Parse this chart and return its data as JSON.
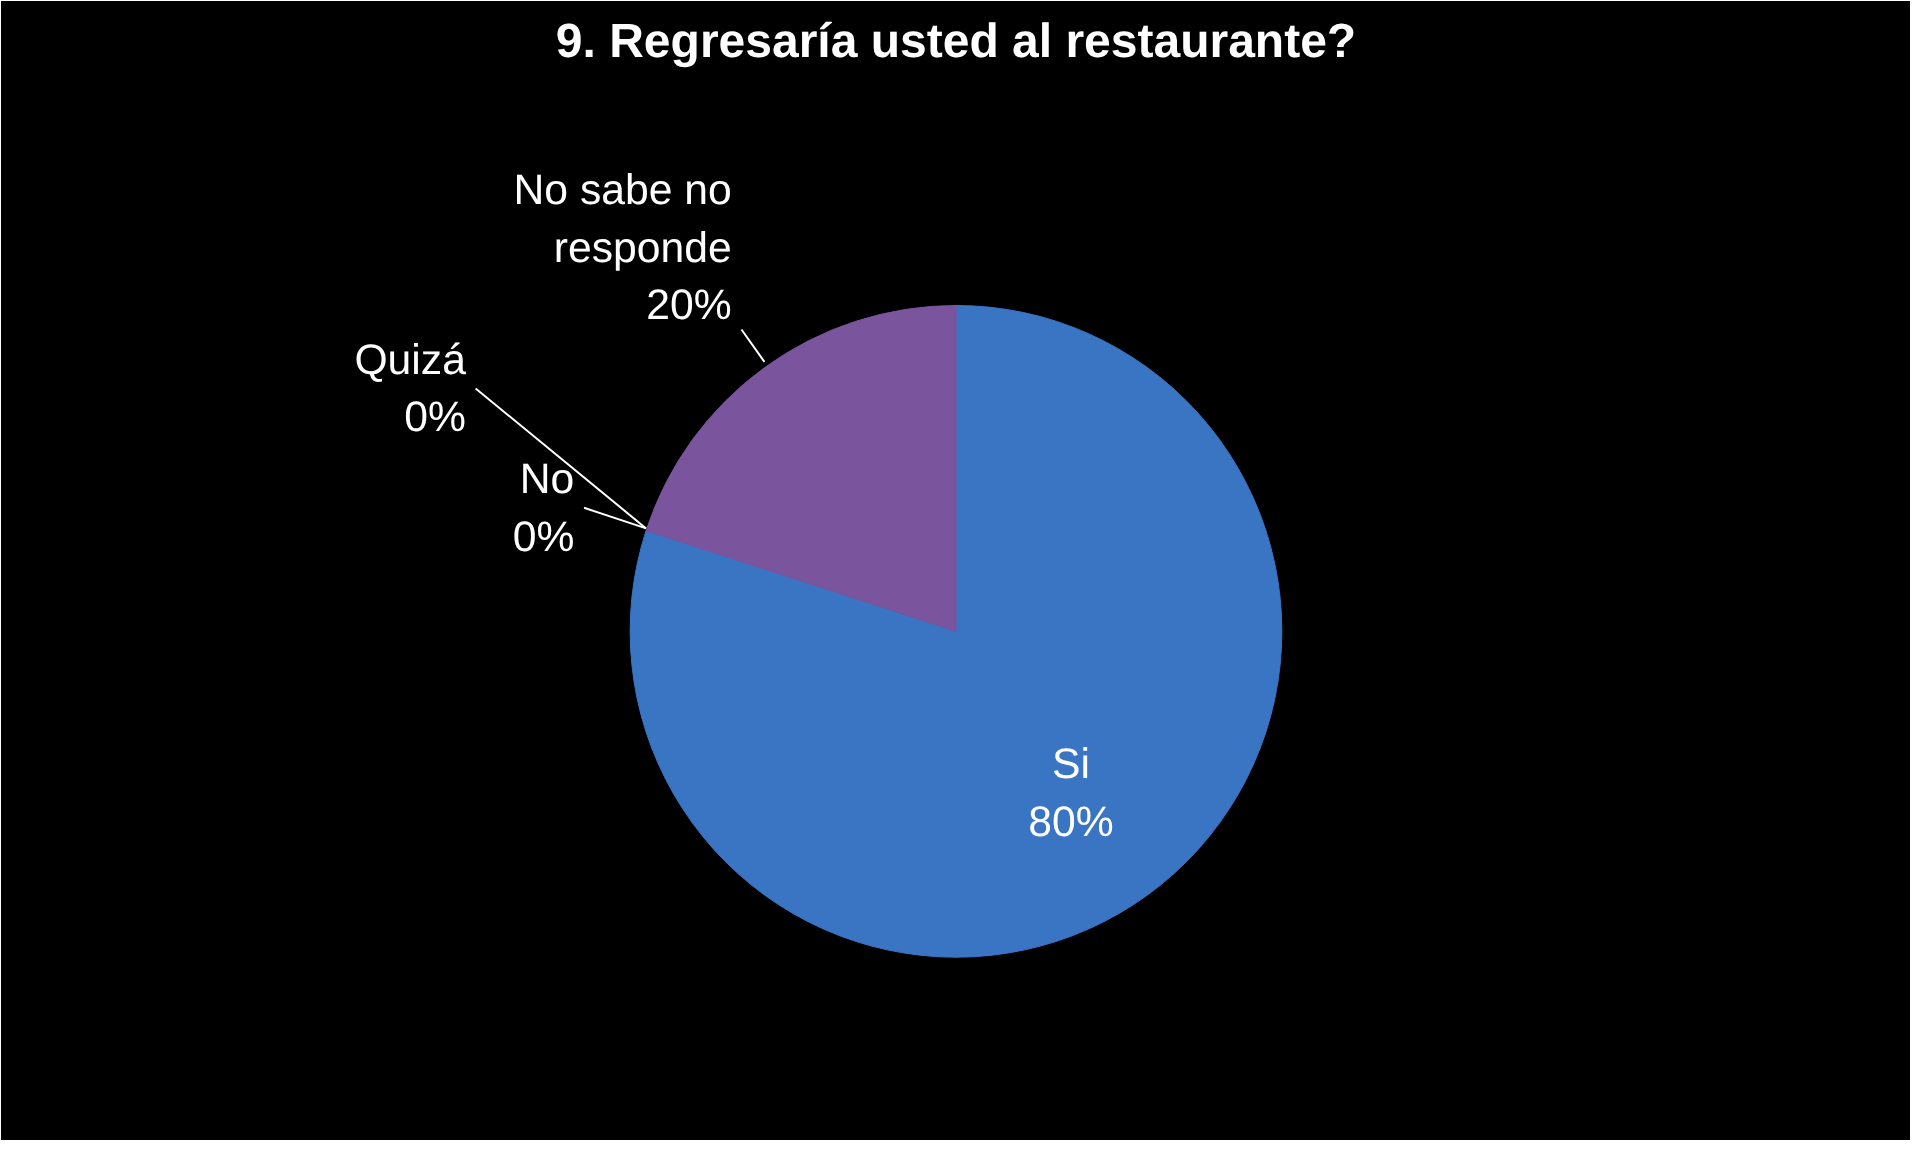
{
  "chart_data": {
    "type": "pie",
    "title": "9. Regresaría usted al restaurante?",
    "categories": [
      "Si",
      "No",
      "Quizá",
      "No sabe no responde"
    ],
    "values": [
      80,
      0,
      0,
      20
    ],
    "colors": [
      "#3a75c4",
      "#c0504d",
      "#9bbb59",
      "#7a559e"
    ],
    "value_labels": [
      "80%",
      "0%",
      "0%",
      "20%"
    ],
    "legend": false
  }
}
